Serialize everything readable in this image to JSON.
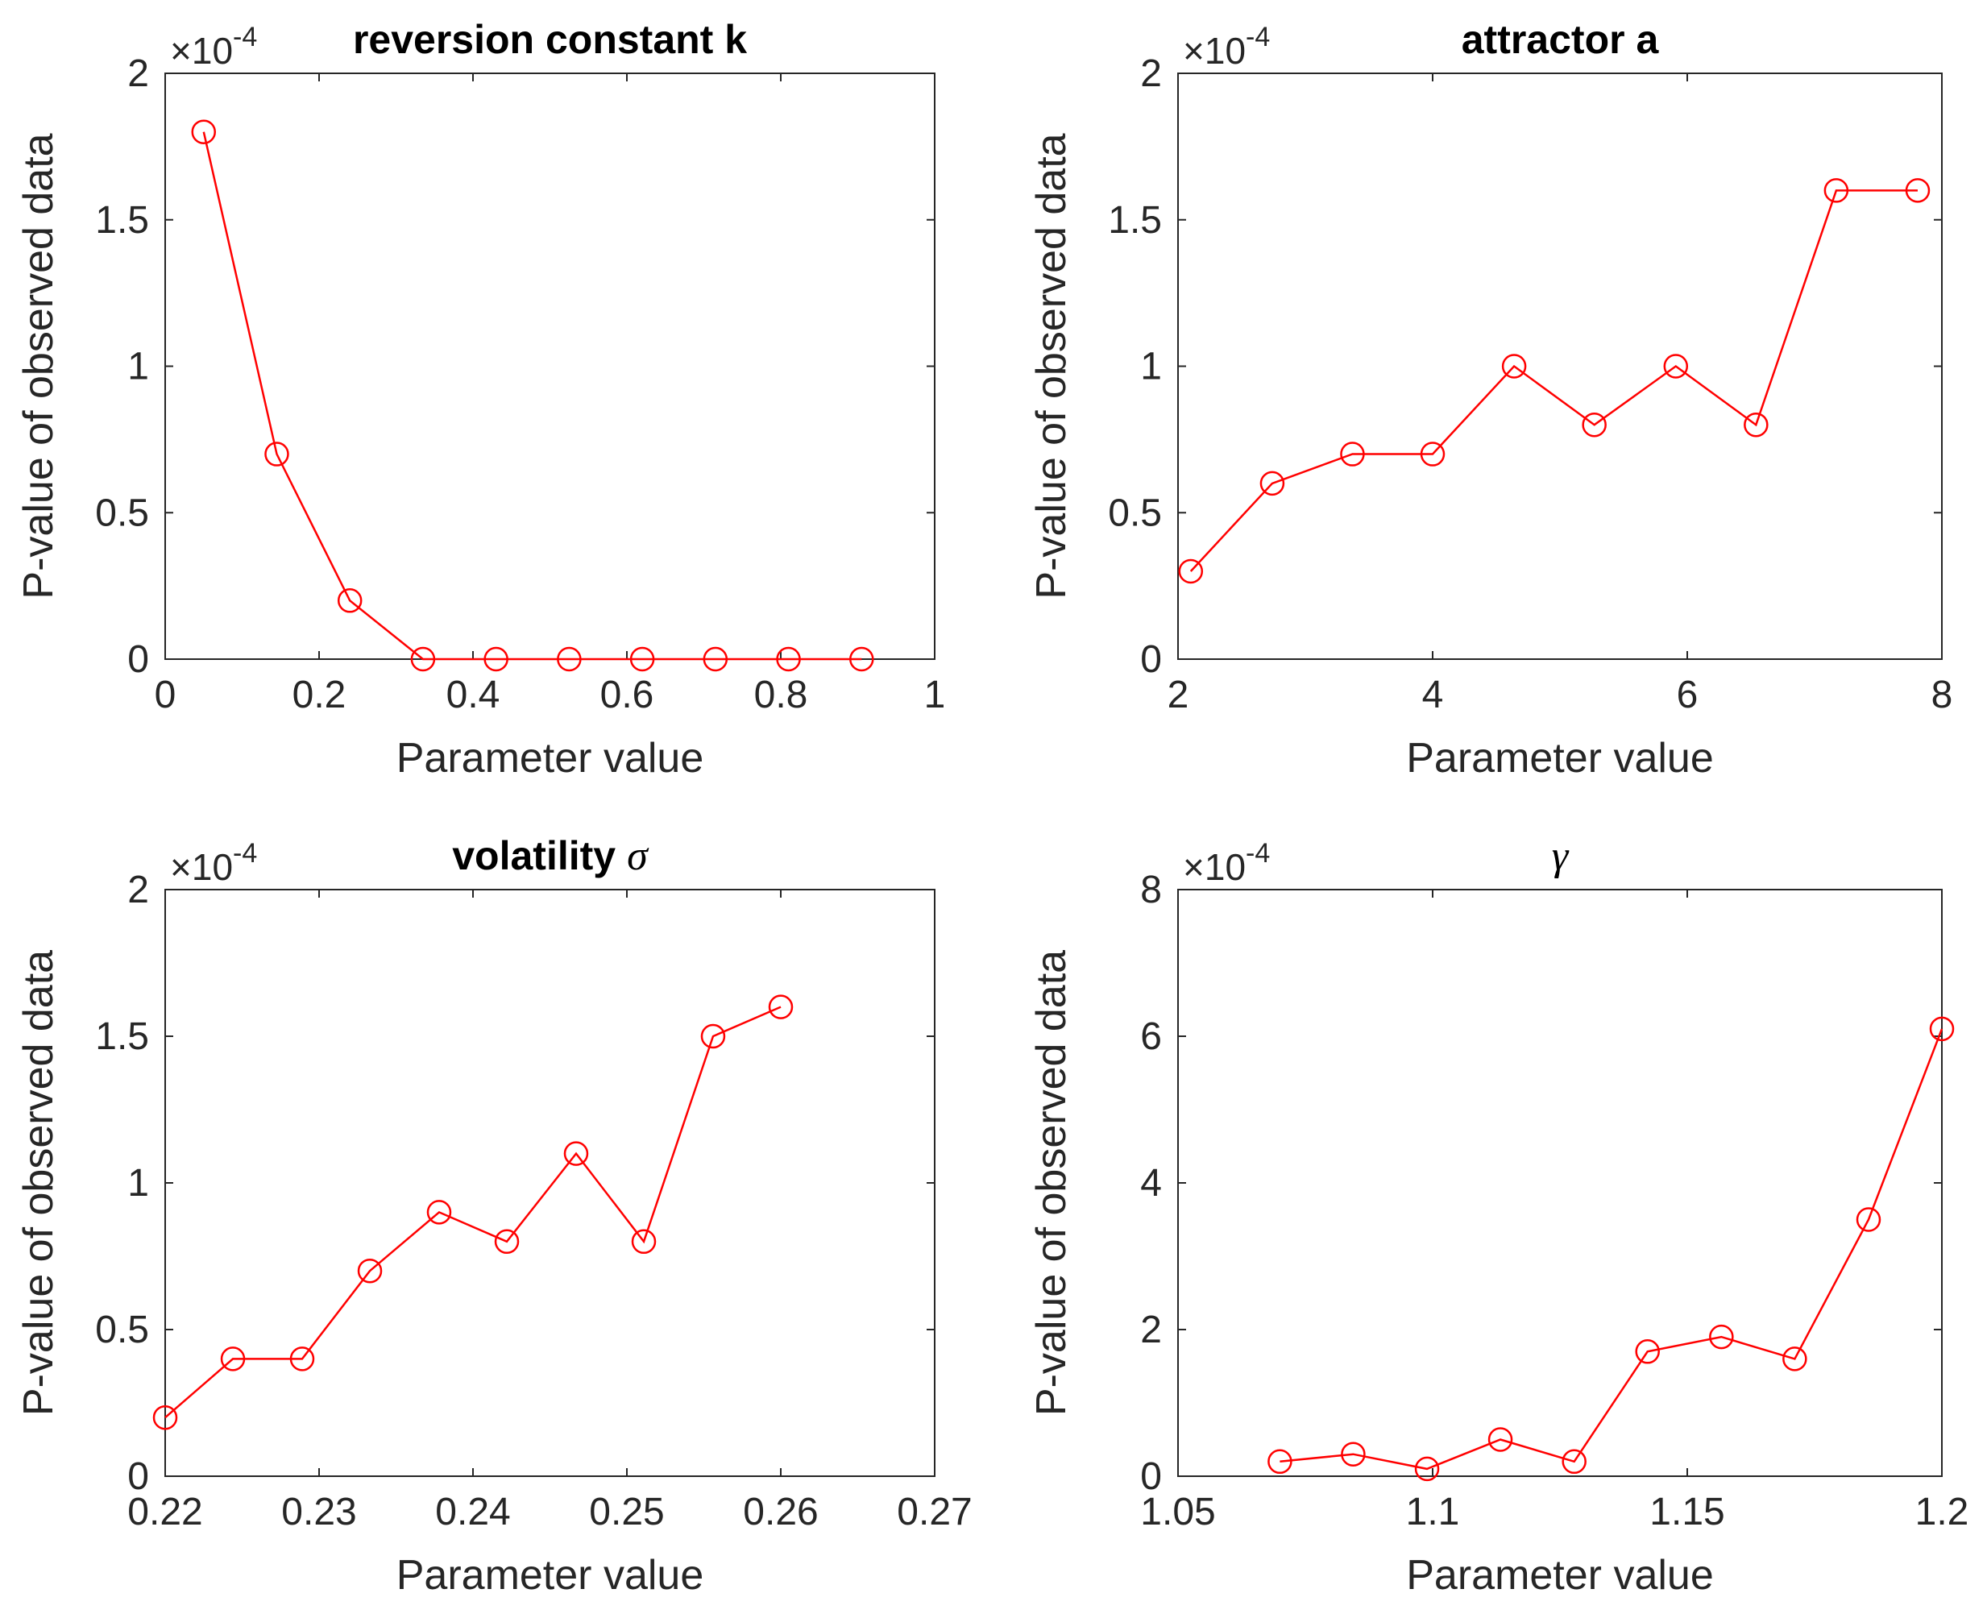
{
  "figure": {
    "background": "#ffffff",
    "series_color": "#ff0000",
    "axis_color": "#262626"
  },
  "chart_data": [
    {
      "type": "line",
      "title": "reversion constant k",
      "title_symbol": "",
      "xlabel": "Parameter value",
      "ylabel": "P-value of observed data",
      "exponent_label": "×10",
      "exponent_power": "-4",
      "xlim": [
        0,
        1
      ],
      "ylim": [
        0,
        2
      ],
      "xticks": [
        0,
        0.2,
        0.4,
        0.6,
        0.8,
        1
      ],
      "xtick_labels": [
        "0",
        "0.2",
        "0.4",
        "0.6",
        "0.8",
        "1"
      ],
      "yticks": [
        0,
        0.5,
        1,
        1.5,
        2
      ],
      "ytick_labels": [
        "0",
        "0.5",
        "1",
        "1.5",
        "2"
      ],
      "marker": "circle",
      "series": [
        {
          "name": "P-value",
          "x": [
            0.05,
            0.145,
            0.24,
            0.335,
            0.43,
            0.525,
            0.62,
            0.715,
            0.81,
            0.905
          ],
          "y": [
            1.8,
            0.7,
            0.2,
            0,
            0,
            0,
            0,
            0,
            0,
            0
          ]
        }
      ]
    },
    {
      "type": "line",
      "title": "attractor a",
      "title_symbol": "",
      "xlabel": "Parameter value",
      "ylabel": "P-value of observed data",
      "exponent_label": "×10",
      "exponent_power": "-4",
      "xlim": [
        2,
        8
      ],
      "ylim": [
        0,
        2
      ],
      "xticks": [
        2,
        4,
        6,
        8
      ],
      "xtick_labels": [
        "2",
        "4",
        "6",
        "8"
      ],
      "yticks": [
        0,
        0.5,
        1,
        1.5,
        2
      ],
      "ytick_labels": [
        "0",
        "0.5",
        "1",
        "1.5",
        "2"
      ],
      "marker": "circle",
      "series": [
        {
          "name": "P-value",
          "x": [
            2.1,
            2.74,
            3.37,
            4.0,
            4.64,
            5.27,
            5.91,
            6.54,
            7.17,
            7.81
          ],
          "y": [
            0.3,
            0.6,
            0.7,
            0.7,
            1.0,
            0.8,
            1.0,
            0.8,
            1.6,
            1.6
          ]
        }
      ]
    },
    {
      "type": "line",
      "title": "volatility",
      "title_symbol": "σ",
      "xlabel": "Parameter value",
      "ylabel": "P-value of observed data",
      "exponent_label": "×10",
      "exponent_power": "-4",
      "xlim": [
        0.22,
        0.27
      ],
      "ylim": [
        0,
        2
      ],
      "xticks": [
        0.22,
        0.23,
        0.24,
        0.25,
        0.26,
        0.27
      ],
      "xtick_labels": [
        "0.22",
        "0.23",
        "0.24",
        "0.25",
        "0.26",
        "0.27"
      ],
      "yticks": [
        0,
        0.5,
        1,
        1.5,
        2
      ],
      "ytick_labels": [
        "0",
        "0.5",
        "1",
        "1.5",
        "2"
      ],
      "marker": "circle",
      "series": [
        {
          "name": "P-value",
          "x": [
            0.22,
            0.2244,
            0.2289,
            0.2333,
            0.2378,
            0.2422,
            0.2467,
            0.2511,
            0.2556,
            0.26
          ],
          "y": [
            0.2,
            0.4,
            0.4,
            0.7,
            0.9,
            0.8,
            1.1,
            0.8,
            1.5,
            1.6
          ]
        }
      ]
    },
    {
      "type": "line",
      "title": "",
      "title_symbol": "γ",
      "xlabel": "Parameter value",
      "ylabel": "P-value of observed data",
      "exponent_label": "×10",
      "exponent_power": "-4",
      "xlim": [
        1.05,
        1.2
      ],
      "ylim": [
        0,
        8
      ],
      "xticks": [
        1.05,
        1.1,
        1.15,
        1.2
      ],
      "xtick_labels": [
        "1.05",
        "1.1",
        "1.15",
        "1.2"
      ],
      "yticks": [
        0,
        2,
        4,
        6,
        8
      ],
      "ytick_labels": [
        "0",
        "2",
        "4",
        "6",
        "8"
      ],
      "marker": "circle",
      "series": [
        {
          "name": "P-value",
          "x": [
            1.07,
            1.0844,
            1.0989,
            1.1133,
            1.1278,
            1.1422,
            1.1567,
            1.1711,
            1.1856,
            1.2
          ],
          "y": [
            0.2,
            0.3,
            0.1,
            0.5,
            0.2,
            1.7,
            1.9,
            1.6,
            3.5,
            6.1
          ]
        }
      ]
    }
  ]
}
